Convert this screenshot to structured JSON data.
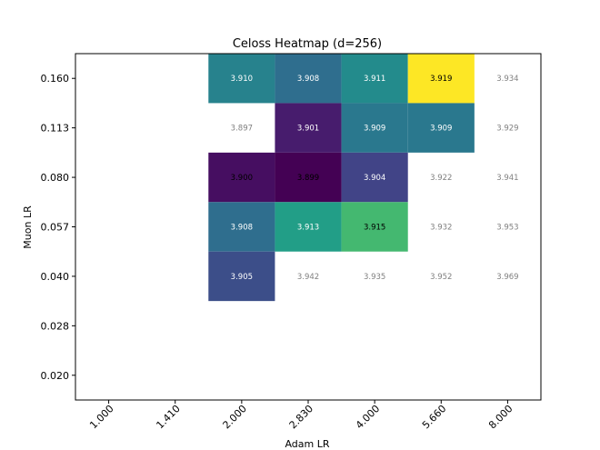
{
  "chart_data": {
    "type": "heatmap",
    "title": "Celoss Heatmap (d=256)",
    "xlabel": "Adam LR",
    "ylabel": "Muon LR",
    "x_categories": [
      "1.000",
      "1.410",
      "2.000",
      "2.830",
      "4.000",
      "5.660",
      "8.000"
    ],
    "y_categories": [
      "0.160",
      "0.113",
      "0.080",
      "0.057",
      "0.040",
      "0.028",
      "0.020"
    ],
    "color_range": [
      3.899,
      3.919
    ],
    "colormap": "viridis",
    "cells": [
      {
        "x": "2.000",
        "y": "0.160",
        "value": 3.91,
        "label": "3.910"
      },
      {
        "x": "2.830",
        "y": "0.160",
        "value": 3.908,
        "label": "3.908"
      },
      {
        "x": "4.000",
        "y": "0.160",
        "value": 3.911,
        "label": "3.911"
      },
      {
        "x": "5.660",
        "y": "0.160",
        "value": 3.919,
        "label": "3.919"
      },
      {
        "x": "8.000",
        "y": "0.160",
        "value": 3.934,
        "label": "3.934"
      },
      {
        "x": "2.000",
        "y": "0.113",
        "value": 3.897,
        "label": "3.897"
      },
      {
        "x": "2.830",
        "y": "0.113",
        "value": 3.901,
        "label": "3.901"
      },
      {
        "x": "4.000",
        "y": "0.113",
        "value": 3.909,
        "label": "3.909"
      },
      {
        "x": "5.660",
        "y": "0.113",
        "value": 3.909,
        "label": "3.909"
      },
      {
        "x": "8.000",
        "y": "0.113",
        "value": 3.929,
        "label": "3.929"
      },
      {
        "x": "2.000",
        "y": "0.080",
        "value": 3.9,
        "label": "3.900"
      },
      {
        "x": "2.830",
        "y": "0.080",
        "value": 3.899,
        "label": "3.899"
      },
      {
        "x": "4.000",
        "y": "0.080",
        "value": 3.904,
        "label": "3.904"
      },
      {
        "x": "5.660",
        "y": "0.080",
        "value": 3.922,
        "label": "3.922"
      },
      {
        "x": "8.000",
        "y": "0.080",
        "value": 3.941,
        "label": "3.941"
      },
      {
        "x": "2.000",
        "y": "0.057",
        "value": 3.908,
        "label": "3.908"
      },
      {
        "x": "2.830",
        "y": "0.057",
        "value": 3.913,
        "label": "3.913"
      },
      {
        "x": "4.000",
        "y": "0.057",
        "value": 3.915,
        "label": "3.915"
      },
      {
        "x": "5.660",
        "y": "0.057",
        "value": 3.932,
        "label": "3.932"
      },
      {
        "x": "8.000",
        "y": "0.057",
        "value": 3.953,
        "label": "3.953"
      },
      {
        "x": "2.000",
        "y": "0.040",
        "value": 3.905,
        "label": "3.905"
      },
      {
        "x": "2.830",
        "y": "0.040",
        "value": 3.942,
        "label": "3.942"
      },
      {
        "x": "4.000",
        "y": "0.040",
        "value": 3.935,
        "label": "3.935"
      },
      {
        "x": "5.660",
        "y": "0.040",
        "value": 3.952,
        "label": "3.952"
      },
      {
        "x": "8.000",
        "y": "0.040",
        "value": 3.969,
        "label": "3.969"
      }
    ],
    "colors": {
      "out_of_range_text": "#808080",
      "text_on_light": "#000000",
      "text_on_dark": "#ffffff"
    }
  }
}
